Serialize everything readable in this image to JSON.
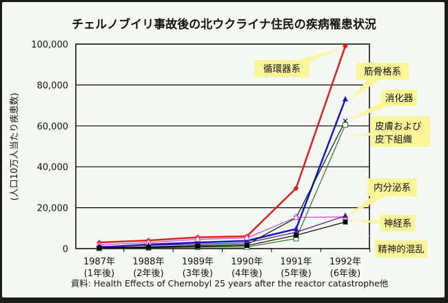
{
  "chart_data": {
    "type": "line",
    "title": "チェルノブイリ事故後の北ウクライナ住民の疾病罹患状況",
    "ylabel": "(人口10万人当たり疾患数)",
    "xlabel": "",
    "categories": [
      {
        "year": "1987年",
        "sub": "(1年後)"
      },
      {
        "year": "1988年",
        "sub": "(2年後)"
      },
      {
        "year": "1989年",
        "sub": "(3年後)"
      },
      {
        "year": "1990年",
        "sub": "(4年後)"
      },
      {
        "year": "1991年",
        "sub": "(5年後)"
      },
      {
        "year": "1992年",
        "sub": "(6年後)"
      }
    ],
    "ylim": [
      0,
      100000
    ],
    "yticks": [
      "0",
      "20,000",
      "40,000",
      "60,000",
      "80,000",
      "100,000"
    ],
    "grid": true,
    "legend": "callouts-right",
    "series": [
      {
        "name": "循環器系",
        "color": "#e01c1c",
        "marker": "diamond",
        "values": [
          3000,
          4000,
          5500,
          6000,
          29500,
          99000
        ]
      },
      {
        "name": "筋骨格系",
        "color": "#1414c8",
        "marker": "triangle",
        "values": [
          600,
          2000,
          3000,
          3800,
          9600,
          73000
        ]
      },
      {
        "name": "消化器",
        "color": "#111111",
        "marker": "x",
        "values": [
          400,
          900,
          1500,
          2000,
          15000,
          62500
        ]
      },
      {
        "name": "皮膚および皮下組織",
        "color": "#1f7a1f",
        "marker": "open-square",
        "values": [
          200,
          400,
          700,
          800,
          4900,
          60500
        ]
      },
      {
        "name": "内分泌系",
        "color": "#d040d0",
        "marker": "open-triangle",
        "values": [
          1800,
          3000,
          4500,
          5200,
          15300,
          15500
        ]
      },
      {
        "name": "神経系",
        "color": "#4b1a80",
        "marker": "triangle",
        "values": [
          1000,
          1600,
          2200,
          2800,
          8000,
          16000
        ]
      },
      {
        "name": "精神的混乱",
        "color": "#000000",
        "marker": "square",
        "values": [
          300,
          600,
          1000,
          1500,
          6500,
          13000
        ]
      }
    ],
    "source": "資料: Health Effects of Chernobyl 25 years after the reactor catastrophe他"
  },
  "colors": {
    "callout": "#fbf59a",
    "background": "#f5f8f3"
  }
}
